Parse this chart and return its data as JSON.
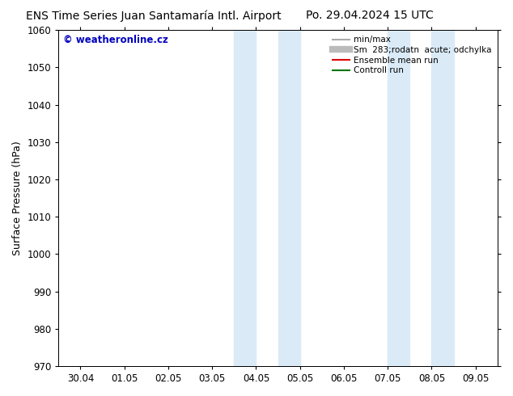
{
  "title_left": "ENS Time Series Juan Santamaría Intl. Airport",
  "title_right": "Po. 29.04.2024 15 UTC",
  "ylabel": "Surface Pressure (hPa)",
  "ylim": [
    970,
    1060
  ],
  "yticks": [
    970,
    980,
    990,
    1000,
    1010,
    1020,
    1030,
    1040,
    1050,
    1060
  ],
  "xtick_labels": [
    "30.04",
    "01.05",
    "02.05",
    "03.05",
    "04.05",
    "05.05",
    "06.05",
    "07.05",
    "08.05",
    "09.05"
  ],
  "watermark": "© weatheronline.cz",
  "watermark_color": "#0000bb",
  "background_color": "#ffffff",
  "plot_bg_color": "#ffffff",
  "shaded_regions": [
    {
      "xstart": 3.5,
      "xend": 4.0,
      "color": "#daeaf7"
    },
    {
      "xstart": 4.5,
      "xend": 5.0,
      "color": "#daeaf7"
    },
    {
      "xstart": 7.0,
      "xend": 7.5,
      "color": "#daeaf7"
    },
    {
      "xstart": 8.0,
      "xend": 8.5,
      "color": "#daeaf7"
    }
  ],
  "legend_entries": [
    {
      "label": "min/max",
      "color": "#aaaaaa",
      "lw": 1.5,
      "style": "solid"
    },
    {
      "label": "Sm  283;rodatn  acute; odchylka",
      "color": "#bbbbbb",
      "lw": 6,
      "style": "solid"
    },
    {
      "label": "Ensemble mean run",
      "color": "#dd0000",
      "lw": 1.5,
      "style": "solid"
    },
    {
      "label": "Controll run",
      "color": "#007700",
      "lw": 1.5,
      "style": "solid"
    }
  ],
  "title_fontsize": 10,
  "axis_label_fontsize": 9,
  "tick_fontsize": 8.5,
  "legend_fontsize": 7.5,
  "grid_on": false
}
